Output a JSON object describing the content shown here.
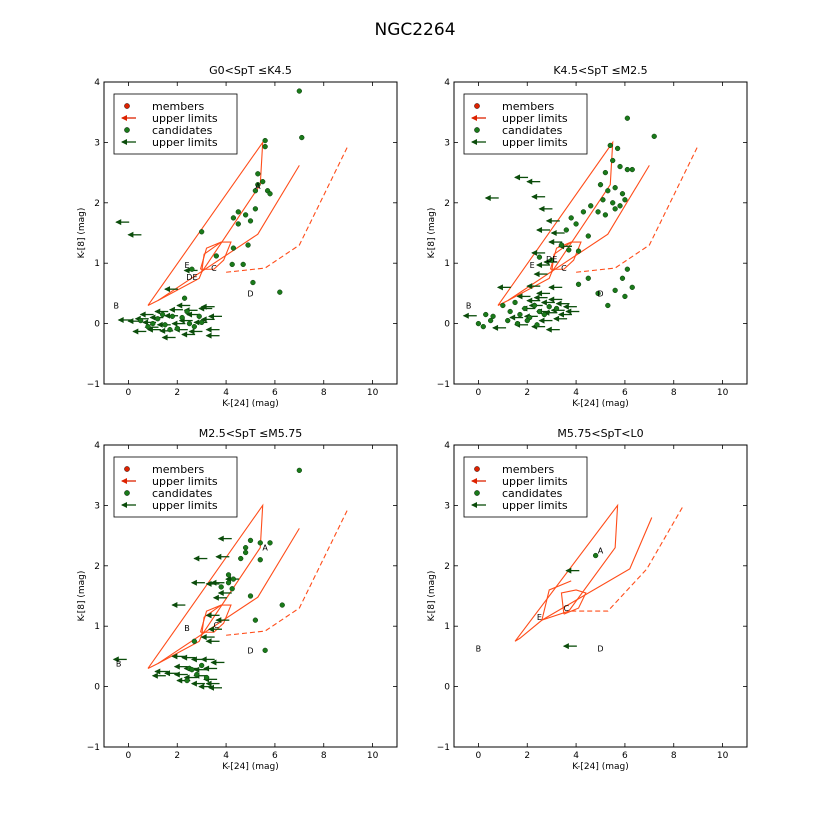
{
  "figure_title": "NGC2264",
  "colors": {
    "red": "#dd2200",
    "red_line": "#ff4d1a",
    "green": "#1a7a1a",
    "dark_green": "#0b4d0b"
  },
  "legend": [
    {
      "label": "members",
      "symbol": "dot",
      "color": "#dd2200"
    },
    {
      "label": "upper limits",
      "symbol": "arrow",
      "color": "#dd2200"
    },
    {
      "label": "candidates",
      "symbol": "dot",
      "color": "#1a7a1a"
    },
    {
      "label": "upper limits",
      "symbol": "arrow",
      "color": "#0b4d0b"
    }
  ],
  "chart_data": [
    {
      "type": "scatter",
      "title": "G0<SpT ≤K4.5",
      "xlabel": "K-[24] (mag)",
      "ylabel": "K-[8] (mag)",
      "xlim": [
        -1,
        11
      ],
      "ylim": [
        -1,
        4
      ],
      "xticks": [
        0,
        2,
        4,
        6,
        8,
        10
      ],
      "yticks": [
        -1,
        0,
        1,
        2,
        3,
        4
      ],
      "members": [],
      "member_upper_limits": [],
      "candidates": [
        [
          7.0,
          3.85
        ],
        [
          7.1,
          3.08
        ],
        [
          5.6,
          3.03
        ],
        [
          5.6,
          2.93
        ],
        [
          5.3,
          2.48
        ],
        [
          5.5,
          2.35
        ],
        [
          5.7,
          2.2
        ],
        [
          5.8,
          2.15
        ],
        [
          5.3,
          2.3
        ],
        [
          5.2,
          2.2
        ],
        [
          4.3,
          1.75
        ],
        [
          4.5,
          1.85
        ],
        [
          4.8,
          1.8
        ],
        [
          4.5,
          1.65
        ],
        [
          5.0,
          1.7
        ],
        [
          5.2,
          1.9
        ],
        [
          3.0,
          1.52
        ],
        [
          4.3,
          1.25
        ],
        [
          4.9,
          1.3
        ],
        [
          4.7,
          0.98
        ],
        [
          4.25,
          0.98
        ],
        [
          5.1,
          0.68
        ],
        [
          6.2,
          0.52
        ],
        [
          2.3,
          0.42
        ],
        [
          3.6,
          1.12
        ],
        [
          2.6,
          0.9
        ],
        [
          0.5,
          0.05
        ],
        [
          0.8,
          -0.05
        ],
        [
          1.2,
          0.08
        ],
        [
          1.5,
          -0.02
        ],
        [
          1.8,
          0.12
        ],
        [
          2.0,
          -0.08
        ],
        [
          2.2,
          0.1
        ],
        [
          2.5,
          0.0
        ],
        [
          2.7,
          -0.05
        ],
        [
          2.9,
          0.12
        ],
        [
          1.0,
          0.0
        ],
        [
          1.4,
          0.15
        ],
        [
          1.7,
          -0.1
        ],
        [
          2.4,
          0.2
        ],
        [
          3.0,
          0.02
        ]
      ],
      "candidate_upper_limits": [
        [
          -0.5,
          1.68
        ],
        [
          0.0,
          1.47
        ],
        [
          2.3,
          0.88
        ],
        [
          1.5,
          0.57
        ],
        [
          3.0,
          0.28
        ],
        [
          -0.4,
          0.06
        ],
        [
          0.0,
          0.04
        ],
        [
          0.3,
          0.08
        ],
        [
          0.6,
          0.02
        ],
        [
          0.9,
          0.1
        ],
        [
          1.2,
          -0.02
        ],
        [
          1.5,
          0.13
        ],
        [
          1.8,
          0.0
        ],
        [
          2.1,
          0.05
        ],
        [
          2.4,
          0.15
        ],
        [
          2.7,
          0.02
        ],
        [
          3.0,
          0.07
        ],
        [
          3.3,
          0.12
        ],
        [
          0.2,
          -0.13
        ],
        [
          0.8,
          -0.1
        ],
        [
          1.3,
          -0.12
        ],
        [
          1.9,
          -0.1
        ],
        [
          2.5,
          -0.13
        ],
        [
          3.2,
          -0.1
        ],
        [
          0.5,
          0.15
        ],
        [
          1.1,
          0.2
        ],
        [
          1.7,
          0.23
        ],
        [
          2.3,
          0.22
        ],
        [
          2.9,
          0.25
        ],
        [
          1.4,
          -0.23
        ],
        [
          3.2,
          -0.2
        ],
        [
          2.2,
          -0.18
        ],
        [
          0.7,
          -0.06
        ],
        [
          2.0,
          0.3
        ]
      ],
      "region_labels": [
        {
          "text": "B",
          "x": -0.5,
          "y": 0.3
        },
        {
          "text": "E",
          "x": 2.4,
          "y": 0.97
        },
        {
          "text": "DE",
          "x": 2.6,
          "y": 0.77
        },
        {
          "text": "C",
          "x": 3.5,
          "y": 0.92
        },
        {
          "text": "D",
          "x": 5.0,
          "y": 0.5
        },
        {
          "text": "A",
          "x": 5.3,
          "y": 2.28
        }
      ]
    },
    {
      "type": "scatter",
      "title": "K4.5<SpT ≤M2.5",
      "xlabel": "K-[24] (mag)",
      "ylabel": "K-[8] (mag)",
      "xlim": [
        -1,
        11
      ],
      "ylim": [
        -1,
        4
      ],
      "xticks": [
        0,
        2,
        4,
        6,
        8,
        10
      ],
      "yticks": [
        -1,
        0,
        1,
        2,
        3,
        4
      ],
      "members": [],
      "member_upper_limits": [],
      "candidates": [
        [
          6.1,
          3.4
        ],
        [
          7.2,
          3.1
        ],
        [
          5.4,
          2.95
        ],
        [
          5.7,
          2.9
        ],
        [
          5.5,
          2.7
        ],
        [
          5.8,
          2.6
        ],
        [
          6.1,
          2.55
        ],
        [
          5.2,
          2.5
        ],
        [
          6.3,
          2.55
        ],
        [
          5.0,
          2.3
        ],
        [
          5.3,
          2.2
        ],
        [
          5.6,
          2.25
        ],
        [
          5.9,
          2.15
        ],
        [
          5.1,
          2.05
        ],
        [
          5.5,
          2.0
        ],
        [
          5.8,
          1.95
        ],
        [
          6.0,
          2.05
        ],
        [
          4.6,
          1.95
        ],
        [
          4.9,
          1.85
        ],
        [
          5.2,
          1.8
        ],
        [
          5.6,
          1.9
        ],
        [
          4.3,
          1.85
        ],
        [
          4.0,
          1.65
        ],
        [
          3.8,
          1.75
        ],
        [
          3.6,
          1.55
        ],
        [
          4.5,
          1.45
        ],
        [
          3.4,
          1.3
        ],
        [
          3.7,
          1.22
        ],
        [
          4.1,
          1.2
        ],
        [
          2.5,
          1.1
        ],
        [
          3.0,
          1.05
        ],
        [
          4.5,
          0.75
        ],
        [
          6.1,
          0.9
        ],
        [
          5.9,
          0.75
        ],
        [
          5.6,
          0.55
        ],
        [
          6.0,
          0.45
        ],
        [
          5.3,
          0.3
        ],
        [
          6.3,
          0.6
        ],
        [
          4.1,
          0.65
        ],
        [
          4.9,
          0.5
        ],
        [
          1.0,
          0.3
        ],
        [
          1.3,
          0.2
        ],
        [
          1.5,
          0.35
        ],
        [
          1.7,
          0.15
        ],
        [
          1.9,
          0.25
        ],
        [
          2.1,
          0.1
        ],
        [
          2.3,
          0.3
        ],
        [
          2.5,
          0.2
        ],
        [
          2.7,
          0.15
        ],
        [
          2.9,
          0.28
        ],
        [
          1.2,
          0.05
        ],
        [
          1.6,
          0.0
        ],
        [
          2.0,
          0.05
        ],
        [
          2.4,
          -0.02
        ],
        [
          0.3,
          0.15
        ],
        [
          0.5,
          0.05
        ],
        [
          0.2,
          -0.05
        ],
        [
          0.0,
          0.0
        ],
        [
          0.6,
          0.12
        ],
        [
          3.2,
          0.25
        ]
      ],
      "candidate_upper_limits": [
        [
          1.5,
          2.42
        ],
        [
          2.0,
          2.35
        ],
        [
          2.2,
          2.1
        ],
        [
          0.3,
          2.08
        ],
        [
          2.5,
          1.9
        ],
        [
          2.8,
          1.7
        ],
        [
          2.4,
          1.55
        ],
        [
          3.0,
          1.5
        ],
        [
          2.9,
          1.35
        ],
        [
          3.3,
          1.28
        ],
        [
          2.2,
          1.17
        ],
        [
          2.7,
          1.02
        ],
        [
          2.4,
          0.97
        ],
        [
          2.3,
          0.82
        ],
        [
          2.0,
          0.62
        ],
        [
          0.8,
          0.6
        ],
        [
          2.4,
          0.5
        ],
        [
          2.9,
          0.6
        ],
        [
          1.6,
          0.45
        ],
        [
          2.0,
          0.38
        ],
        [
          2.3,
          0.43
        ],
        [
          2.6,
          0.35
        ],
        [
          2.9,
          0.4
        ],
        [
          3.2,
          0.33
        ],
        [
          3.5,
          0.28
        ],
        [
          1.8,
          0.25
        ],
        [
          2.1,
          0.3
        ],
        [
          2.4,
          0.2
        ],
        [
          2.7,
          0.18
        ],
        [
          3.0,
          0.22
        ],
        [
          3.3,
          0.15
        ],
        [
          3.6,
          0.2
        ],
        [
          -0.6,
          0.13
        ],
        [
          1.3,
          0.1
        ],
        [
          1.9,
          0.12
        ],
        [
          2.5,
          0.05
        ],
        [
          3.1,
          0.08
        ],
        [
          0.6,
          -0.07
        ],
        [
          1.5,
          -0.02
        ],
        [
          2.2,
          -0.05
        ],
        [
          2.8,
          -0.1
        ]
      ],
      "region_labels": [
        {
          "text": "B",
          "x": -0.4,
          "y": 0.3
        },
        {
          "text": "E",
          "x": 2.2,
          "y": 0.97
        },
        {
          "text": "DE",
          "x": 3.0,
          "y": 1.07
        },
        {
          "text": "C",
          "x": 3.5,
          "y": 0.92
        },
        {
          "text": "D",
          "x": 5.0,
          "y": 0.5
        }
      ]
    },
    {
      "type": "scatter",
      "title": "M2.5<SpT ≤M5.75",
      "xlabel": "K-[24] (mag)",
      "ylabel": "K-[8] (mag)",
      "xlim": [
        -1,
        11
      ],
      "ylim": [
        -1,
        4
      ],
      "xticks": [
        0,
        2,
        4,
        6,
        8,
        10
      ],
      "yticks": [
        -1,
        0,
        1,
        2,
        3,
        4
      ],
      "members": [],
      "member_upper_limits": [],
      "candidates": [
        [
          7.0,
          3.58
        ],
        [
          5.0,
          2.42
        ],
        [
          5.4,
          2.38
        ],
        [
          5.8,
          2.38
        ],
        [
          4.8,
          2.3
        ],
        [
          4.8,
          2.22
        ],
        [
          5.4,
          2.1
        ],
        [
          4.6,
          2.12
        ],
        [
          4.1,
          1.85
        ],
        [
          4.3,
          1.78
        ],
        [
          4.1,
          1.72
        ],
        [
          3.8,
          1.65
        ],
        [
          4.25,
          1.62
        ],
        [
          5.0,
          1.5
        ],
        [
          6.3,
          1.35
        ],
        [
          5.2,
          1.1
        ],
        [
          5.6,
          0.6
        ],
        [
          2.7,
          0.75
        ],
        [
          2.5,
          0.3
        ],
        [
          2.8,
          0.2
        ],
        [
          3.0,
          0.35
        ],
        [
          3.2,
          0.15
        ],
        [
          2.4,
          0.1
        ],
        [
          2.6,
          0.28
        ]
      ],
      "candidate_upper_limits": [
        [
          3.7,
          2.45
        ],
        [
          3.6,
          2.15
        ],
        [
          2.7,
          2.12
        ],
        [
          4.0,
          1.78
        ],
        [
          3.4,
          1.72
        ],
        [
          2.6,
          1.72
        ],
        [
          3.2,
          1.7
        ],
        [
          3.7,
          1.55
        ],
        [
          1.8,
          1.35
        ],
        [
          3.5,
          1.47
        ],
        [
          3.2,
          1.18
        ],
        [
          3.6,
          1.1
        ],
        [
          3.3,
          0.95
        ],
        [
          3.0,
          0.82
        ],
        [
          3.2,
          0.75
        ],
        [
          -0.6,
          0.45
        ],
        [
          1.8,
          0.5
        ],
        [
          2.2,
          0.48
        ],
        [
          2.6,
          0.45
        ],
        [
          3.0,
          0.45
        ],
        [
          3.4,
          0.4
        ],
        [
          1.9,
          0.33
        ],
        [
          2.3,
          0.3
        ],
        [
          2.7,
          0.28
        ],
        [
          3.1,
          0.3
        ],
        [
          1.1,
          0.25
        ],
        [
          1.5,
          0.22
        ],
        [
          1.9,
          0.2
        ],
        [
          2.3,
          0.15
        ],
        [
          2.7,
          0.18
        ],
        [
          3.1,
          0.12
        ],
        [
          1.0,
          0.18
        ],
        [
          2.0,
          0.1
        ],
        [
          2.6,
          0.05
        ],
        [
          3.2,
          0.05
        ],
        [
          2.9,
          0.0
        ],
        [
          3.3,
          -0.02
        ]
      ],
      "region_labels": [
        {
          "text": "B",
          "x": -0.4,
          "y": 0.38
        },
        {
          "text": "B",
          "x": 2.4,
          "y": 0.97
        },
        {
          "text": "C",
          "x": 3.6,
          "y": 1.02
        },
        {
          "text": "D",
          "x": 5.0,
          "y": 0.6
        },
        {
          "text": "A",
          "x": 5.6,
          "y": 2.3
        }
      ]
    },
    {
      "type": "scatter",
      "title": "M5.75<SpT<L0",
      "xlabel": "K-[24] (mag)",
      "ylabel": "K-[8] (mag)",
      "xlim": [
        -1,
        11
      ],
      "ylim": [
        -1,
        4
      ],
      "xticks": [
        0,
        2,
        4,
        6,
        8,
        10
      ],
      "yticks": [
        -1,
        0,
        1,
        2,
        3,
        4
      ],
      "members": [],
      "member_upper_limits": [],
      "candidates": [
        [
          4.8,
          2.17
        ]
      ],
      "candidate_upper_limits": [
        [
          3.6,
          1.92
        ],
        [
          3.5,
          0.67
        ]
      ],
      "region_labels": [
        {
          "text": "A",
          "x": 5.0,
          "y": 2.25
        },
        {
          "text": "E",
          "x": 2.5,
          "y": 1.15
        },
        {
          "text": "C",
          "x": 3.6,
          "y": 1.3
        },
        {
          "text": "B",
          "x": 0.0,
          "y": 0.63
        },
        {
          "text": "D",
          "x": 5.0,
          "y": 0.63
        }
      ]
    }
  ]
}
